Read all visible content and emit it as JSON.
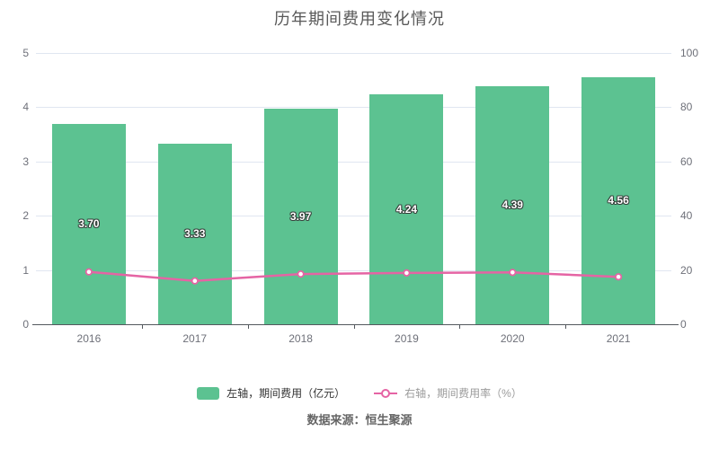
{
  "title": "历年期间费用变化情况",
  "source": "数据来源：恒生聚源",
  "legend": [
    {
      "label": "左轴，期间费用（亿元）",
      "type": "bar",
      "color": "#5CC291"
    },
    {
      "label": "右轴，期间费用率（%）",
      "type": "line",
      "color": "#E564A4"
    }
  ],
  "colors": {
    "bar": "#5CC291",
    "line": "#E564A4",
    "grid": "#E0E6F1",
    "axis_label": "#6E7079",
    "axis_line": "#54585E",
    "title": "#595959",
    "bar_label": "#FFFFFF",
    "legend_text_bar": "#333333",
    "legend_text_line": "#9B9B9B",
    "source_text": "#666666",
    "background": "#FFFFFF"
  },
  "chart_data": {
    "type": "bar",
    "title": "历年期间费用变化情况",
    "categories": [
      "2016",
      "2017",
      "2018",
      "2019",
      "2020",
      "2021"
    ],
    "series": [
      {
        "name": "左轴，期间费用（亿元）",
        "type": "bar",
        "axis": "left",
        "values": [
          3.7,
          3.33,
          3.97,
          4.24,
          4.39,
          4.56
        ],
        "labels": [
          "3.70",
          "3.33",
          "3.97",
          "4.24",
          "4.39",
          "4.56"
        ],
        "color": "#5CC291"
      },
      {
        "name": "右轴，期间费用率（%）",
        "type": "line",
        "axis": "right",
        "values": [
          19.3,
          16.0,
          18.5,
          18.9,
          19.1,
          17.5
        ],
        "color": "#E564A4"
      }
    ],
    "left_axis": {
      "min": 0,
      "max": 5,
      "ticks": [
        0,
        1,
        2,
        3,
        4,
        5
      ],
      "label": ""
    },
    "right_axis": {
      "min": 0,
      "max": 100,
      "ticks": [
        0,
        20,
        40,
        60,
        80,
        100
      ],
      "label": ""
    },
    "xlabel": "",
    "ylabel": "",
    "grid": true,
    "legend_position": "bottom"
  }
}
